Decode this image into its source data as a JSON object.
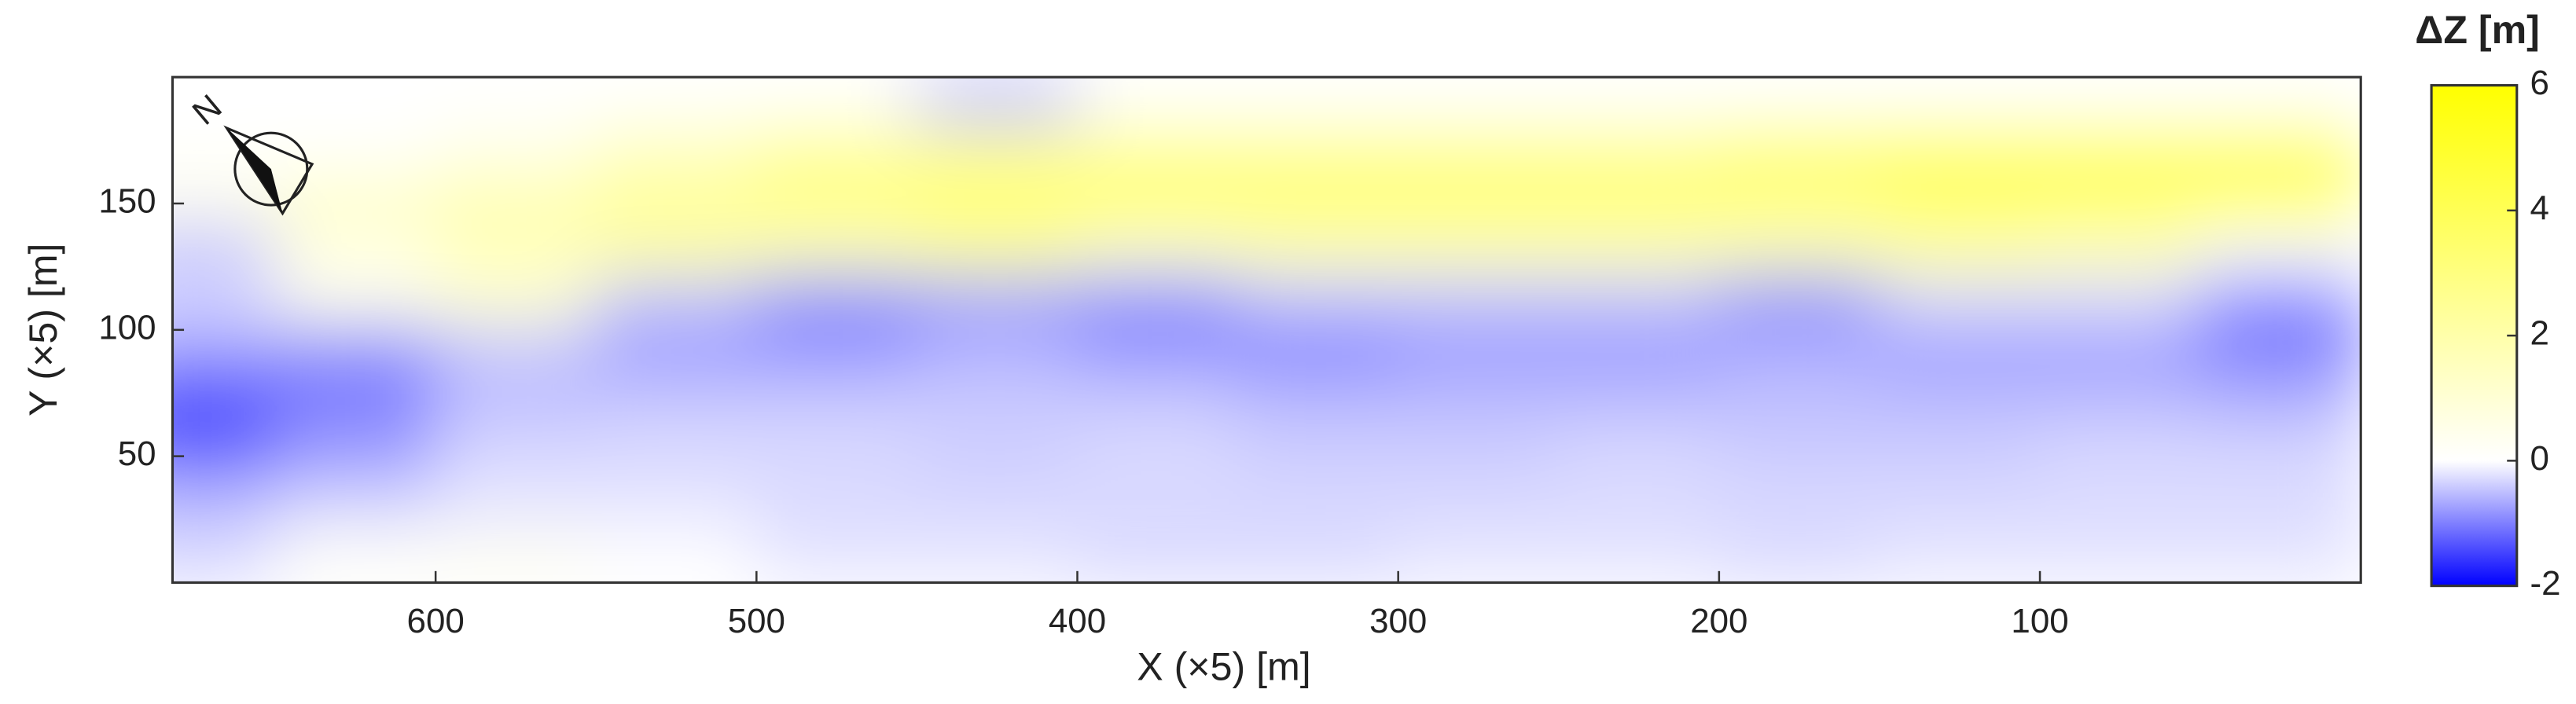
{
  "chart_data": {
    "type": "heatmap",
    "xlabel": "X (×5) [m]",
    "ylabel": "Y (×5) [m]",
    "colorbar_label": "ΔZ [m]",
    "north_label": "N",
    "xlim": [
      682,
      0
    ],
    "ylim": [
      0,
      200
    ],
    "xticks": [
      600,
      500,
      400,
      300,
      200,
      100
    ],
    "yticks": [
      150,
      100,
      50
    ],
    "clim": [
      -2,
      6
    ],
    "cticks": [
      6,
      4,
      2,
      0,
      -2
    ],
    "colormap": [
      "#0000ff",
      "#ffffff",
      "#ffff00"
    ],
    "x": [
      675,
      625,
      575,
      525,
      475,
      425,
      375,
      325,
      275,
      225,
      175,
      125,
      75,
      25
    ],
    "y": [
      190,
      170,
      150,
      130,
      110,
      90,
      70,
      50,
      30,
      10
    ],
    "z": [
      [
        0,
        0,
        0,
        0,
        0,
        -0.5,
        0,
        0,
        0,
        0,
        0,
        0,
        0,
        0
      ],
      [
        0,
        0,
        0.5,
        1.5,
        2.5,
        2.5,
        2.5,
        2.5,
        2.5,
        2.5,
        3.5,
        4,
        4,
        4
      ],
      [
        0.5,
        1.5,
        2,
        2.5,
        3,
        3.5,
        3.5,
        3.5,
        3.5,
        3.5,
        3,
        3.5,
        3.5,
        3.5
      ],
      [
        -0.5,
        0.5,
        1.5,
        2,
        1.5,
        2,
        1,
        1.5,
        1.5,
        1.5,
        1.5,
        2,
        1.5,
        0
      ],
      [
        -0.3,
        0.5,
        1,
        -0.5,
        -1,
        -0.8,
        -1,
        -0.5,
        -0.5,
        -0.5,
        -1,
        -0.3,
        -0.3,
        -1
      ],
      [
        -0.8,
        -1,
        -0.5,
        -0.8,
        -0.8,
        -0.6,
        -0.8,
        -1,
        -0.8,
        -0.8,
        -0.6,
        -0.8,
        -0.8,
        -1
      ],
      [
        -1.5,
        -1,
        -0.5,
        -0.4,
        -0.4,
        -0.4,
        -0.4,
        -0.5,
        -0.5,
        -0.5,
        -0.5,
        -0.5,
        -0.5,
        -0.6
      ],
      [
        -1.2,
        -0.8,
        -0.3,
        -0.3,
        -0.3,
        -0.4,
        -0.3,
        -0.4,
        -0.4,
        -0.3,
        -0.4,
        -0.4,
        -0.3,
        -0.3
      ],
      [
        -0.5,
        -0.3,
        -0.2,
        -0.2,
        -0.3,
        -0.3,
        -0.3,
        -0.3,
        -0.3,
        -0.3,
        -0.3,
        -0.3,
        -0.3,
        -0.3
      ],
      [
        -0.3,
        0.2,
        0.3,
        0,
        -0.2,
        -0.2,
        -0.3,
        -0.3,
        -0.2,
        -0.2,
        -0.3,
        -0.2,
        -0.2,
        -0.2
      ]
    ]
  }
}
